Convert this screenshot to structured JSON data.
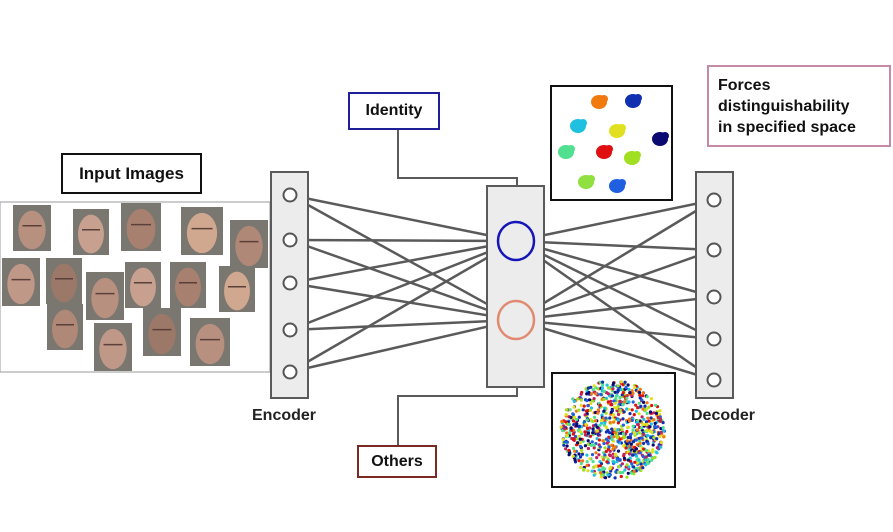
{
  "labels": {
    "input_images": "Input Images",
    "identity": "Identity",
    "others": "Others",
    "encoder": "Encoder",
    "decoder": "Decoder",
    "forces_line1": "Forces",
    "forces_line2": "distinguishability",
    "forces_line3": "in specified space"
  },
  "colors": {
    "identity_node": "#1515b8",
    "others_node": "#e08a70",
    "connection": "#5a5a5a",
    "layer_fill": "#ececec",
    "layer_stroke": "#5a5a5a",
    "identity_box": "#1f1f9a",
    "others_box": "#7a2a20",
    "forces_box": "#c48aa8",
    "cluster_colors": [
      "#f07a10",
      "#1030b0",
      "#20c0e0",
      "#e0e020",
      "#0a0a70",
      "#50e090",
      "#e01010",
      "#a0e020",
      "#90e040",
      "#2060e0"
    ]
  },
  "icons": [
    "face-photo",
    "encoder-layer",
    "latent-node",
    "decoder-layer",
    "cluster-plot",
    "scatter-plot"
  ]
}
